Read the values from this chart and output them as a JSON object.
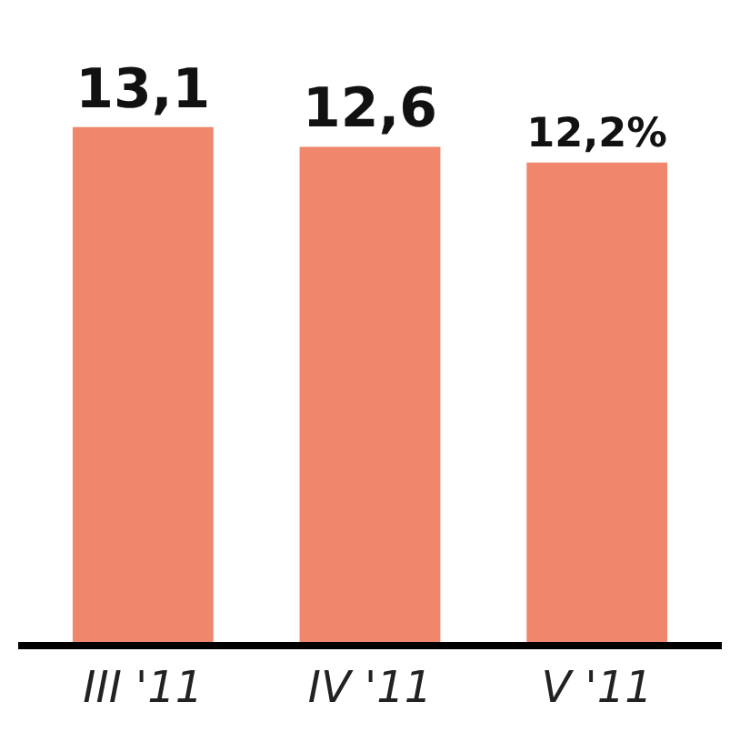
{
  "chart_data": {
    "type": "bar",
    "categories": [
      "III '11",
      "IV '11",
      "V '11"
    ],
    "values": [
      13.1,
      12.6,
      12.2
    ],
    "value_labels": [
      "13,1",
      "12,6",
      "12,2%"
    ],
    "color": "#f0866c",
    "tick_labels": "x"
  }
}
